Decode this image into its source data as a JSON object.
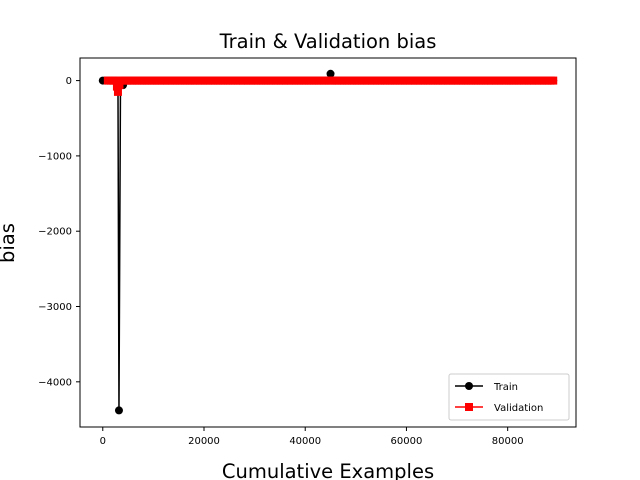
{
  "chart_data": {
    "type": "line",
    "title": "Train & Validation bias",
    "xlabel": "Cumulative Examples",
    "ylabel": "bias",
    "xlim": [
      -4500,
      93500
    ],
    "ylim": [
      -4600,
      300
    ],
    "xticks": [
      0,
      20000,
      40000,
      60000,
      80000
    ],
    "yticks": [
      0,
      -1000,
      -2000,
      -3000,
      -4000
    ],
    "xtick_labels": [
      "0",
      "20000",
      "40000",
      "60000",
      "80000"
    ],
    "ytick_labels": [
      "0",
      "−1000",
      "−2000",
      "−3000",
      "−4000"
    ],
    "grid": false,
    "legend_position": "lower right",
    "series": [
      {
        "name": "Train",
        "color": "#000000",
        "marker": "circle",
        "x_start": 0,
        "x_end": 89000,
        "x_step": 500,
        "baseline": 0,
        "outliers": [
          {
            "x": 3000,
            "y": -10
          },
          {
            "x": 3200,
            "y": -4380
          },
          {
            "x": 3500,
            "y": -20
          },
          {
            "x": 4000,
            "y": -60
          },
          {
            "x": 45000,
            "y": 90
          }
        ]
      },
      {
        "name": "Validation",
        "color": "#ff0000",
        "marker": "square",
        "x_start": 1000,
        "x_end": 89000,
        "x_step": 500,
        "baseline": 0,
        "outliers": [
          {
            "x": 2800,
            "y": -80
          },
          {
            "x": 3000,
            "y": -150
          },
          {
            "x": 3300,
            "y": -60
          }
        ]
      }
    ]
  }
}
